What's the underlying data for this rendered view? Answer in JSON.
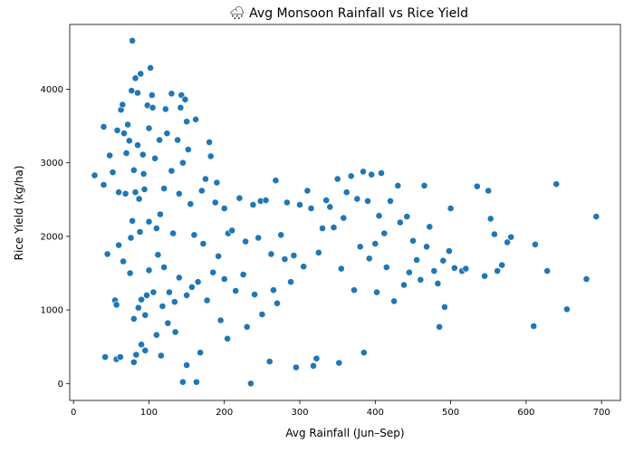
{
  "chart_data": {
    "type": "scatter",
    "title": "🌧 Avg Monsoon Rainfall vs Rice Yield",
    "xlabel": "Avg Rainfall (Jun–Sep)",
    "ylabel": "Rice Yield (kg/ha)",
    "xlim": [
      -5,
      725
    ],
    "ylim": [
      -230,
      4880
    ],
    "xticks": [
      0,
      100,
      200,
      300,
      400,
      500,
      600,
      700
    ],
    "yticks": [
      0,
      1000,
      2000,
      3000,
      4000
    ],
    "grid": false,
    "legend": "none",
    "color": "#1f77b4",
    "points": [
      [
        28,
        2830
      ],
      [
        40,
        3490
      ],
      [
        40,
        2700
      ],
      [
        42,
        360
      ],
      [
        45,
        1760
      ],
      [
        48,
        3100
      ],
      [
        52,
        2870
      ],
      [
        55,
        1130
      ],
      [
        57,
        1070
      ],
      [
        57,
        330
      ],
      [
        58,
        3440
      ],
      [
        60,
        2600
      ],
      [
        60,
        1880
      ],
      [
        62,
        360
      ],
      [
        63,
        3720
      ],
      [
        65,
        3790
      ],
      [
        66,
        1660
      ],
      [
        67,
        3400
      ],
      [
        69,
        2580
      ],
      [
        70,
        3130
      ],
      [
        72,
        3520
      ],
      [
        74,
        3300
      ],
      [
        75,
        1500
      ],
      [
        76,
        1980
      ],
      [
        77,
        3980
      ],
      [
        78,
        4660
      ],
      [
        78,
        2210
      ],
      [
        80,
        2900
      ],
      [
        80,
        880
      ],
      [
        80,
        290
      ],
      [
        82,
        4150
      ],
      [
        82,
        2600
      ],
      [
        83,
        390
      ],
      [
        85,
        3950
      ],
      [
        85,
        3240
      ],
      [
        86,
        1030
      ],
      [
        87,
        2510
      ],
      [
        88,
        2060
      ],
      [
        89,
        4210
      ],
      [
        90,
        1140
      ],
      [
        90,
        530
      ],
      [
        92,
        3110
      ],
      [
        93,
        2850
      ],
      [
        94,
        2640
      ],
      [
        95,
        450
      ],
      [
        95,
        930
      ],
      [
        97,
        1200
      ],
      [
        98,
        3780
      ],
      [
        100,
        3470
      ],
      [
        100,
        2200
      ],
      [
        100,
        1540
      ],
      [
        102,
        4290
      ],
      [
        104,
        3920
      ],
      [
        105,
        3750
      ],
      [
        106,
        1240
      ],
      [
        108,
        3060
      ],
      [
        110,
        2110
      ],
      [
        110,
        660
      ],
      [
        112,
        1750
      ],
      [
        114,
        3310
      ],
      [
        115,
        2300
      ],
      [
        116,
        380
      ],
      [
        118,
        1050
      ],
      [
        120,
        2650
      ],
      [
        120,
        1580
      ],
      [
        122,
        3730
      ],
      [
        124,
        3400
      ],
      [
        125,
        820
      ],
      [
        127,
        1240
      ],
      [
        130,
        3940
      ],
      [
        130,
        2890
      ],
      [
        132,
        2040
      ],
      [
        134,
        1110
      ],
      [
        135,
        700
      ],
      [
        138,
        3310
      ],
      [
        140,
        2580
      ],
      [
        140,
        1440
      ],
      [
        142,
        3750
      ],
      [
        143,
        3920
      ],
      [
        145,
        20
      ],
      [
        145,
        3000
      ],
      [
        148,
        3860
      ],
      [
        150,
        3560
      ],
      [
        150,
        1200
      ],
      [
        150,
        250
      ],
      [
        152,
        3180
      ],
      [
        155,
        2440
      ],
      [
        157,
        1310
      ],
      [
        160,
        2020
      ],
      [
        162,
        3590
      ],
      [
        163,
        20
      ],
      [
        165,
        1380
      ],
      [
        168,
        420
      ],
      [
        170,
        2620
      ],
      [
        172,
        1900
      ],
      [
        175,
        2780
      ],
      [
        177,
        1130
      ],
      [
        180,
        3280
      ],
      [
        182,
        3090
      ],
      [
        185,
        1510
      ],
      [
        188,
        2460
      ],
      [
        190,
        2730
      ],
      [
        192,
        1730
      ],
      [
        195,
        860
      ],
      [
        200,
        2380
      ],
      [
        200,
        1420
      ],
      [
        204,
        610
      ],
      [
        205,
        2040
      ],
      [
        210,
        2080
      ],
      [
        215,
        1260
      ],
      [
        220,
        2520
      ],
      [
        225,
        1480
      ],
      [
        228,
        1930
      ],
      [
        230,
        770
      ],
      [
        235,
        0
      ],
      [
        238,
        2430
      ],
      [
        240,
        1210
      ],
      [
        245,
        1980
      ],
      [
        248,
        2480
      ],
      [
        250,
        940
      ],
      [
        255,
        2490
      ],
      [
        260,
        300
      ],
      [
        262,
        1760
      ],
      [
        265,
        1270
      ],
      [
        268,
        2760
      ],
      [
        270,
        1090
      ],
      [
        275,
        2020
      ],
      [
        280,
        1690
      ],
      [
        283,
        2460
      ],
      [
        288,
        1380
      ],
      [
        292,
        1740
      ],
      [
        295,
        220
      ],
      [
        300,
        2430
      ],
      [
        305,
        1590
      ],
      [
        310,
        2620
      ],
      [
        315,
        2380
      ],
      [
        318,
        240
      ],
      [
        322,
        340
      ],
      [
        325,
        1780
      ],
      [
        330,
        2110
      ],
      [
        335,
        2490
      ],
      [
        340,
        2400
      ],
      [
        345,
        2120
      ],
      [
        350,
        2780
      ],
      [
        352,
        280
      ],
      [
        355,
        1560
      ],
      [
        358,
        2250
      ],
      [
        362,
        2600
      ],
      [
        368,
        2820
      ],
      [
        372,
        1270
      ],
      [
        376,
        2510
      ],
      [
        380,
        1860
      ],
      [
        384,
        2880
      ],
      [
        385,
        420
      ],
      [
        390,
        2480
      ],
      [
        392,
        1700
      ],
      [
        395,
        2840
      ],
      [
        400,
        1900
      ],
      [
        402,
        1240
      ],
      [
        405,
        2280
      ],
      [
        408,
        2860
      ],
      [
        412,
        2040
      ],
      [
        415,
        1580
      ],
      [
        420,
        2480
      ],
      [
        425,
        1120
      ],
      [
        430,
        2690
      ],
      [
        433,
        2190
      ],
      [
        438,
        1340
      ],
      [
        442,
        2270
      ],
      [
        445,
        1510
      ],
      [
        450,
        1940
      ],
      [
        455,
        1680
      ],
      [
        460,
        1410
      ],
      [
        465,
        2690
      ],
      [
        468,
        1860
      ],
      [
        472,
        2130
      ],
      [
        478,
        1530
      ],
      [
        483,
        1360
      ],
      [
        485,
        770
      ],
      [
        490,
        1670
      ],
      [
        492,
        1040
      ],
      [
        498,
        1800
      ],
      [
        500,
        2380
      ],
      [
        505,
        1570
      ],
      [
        515,
        1530
      ],
      [
        520,
        1560
      ],
      [
        535,
        2680
      ],
      [
        545,
        1460
      ],
      [
        550,
        2620
      ],
      [
        553,
        2240
      ],
      [
        558,
        2030
      ],
      [
        562,
        1530
      ],
      [
        568,
        1610
      ],
      [
        575,
        1920
      ],
      [
        580,
        1990
      ],
      [
        610,
        780
      ],
      [
        612,
        1890
      ],
      [
        628,
        1530
      ],
      [
        640,
        2710
      ],
      [
        654,
        1010
      ],
      [
        680,
        1420
      ],
      [
        693,
        2270
      ]
    ]
  }
}
